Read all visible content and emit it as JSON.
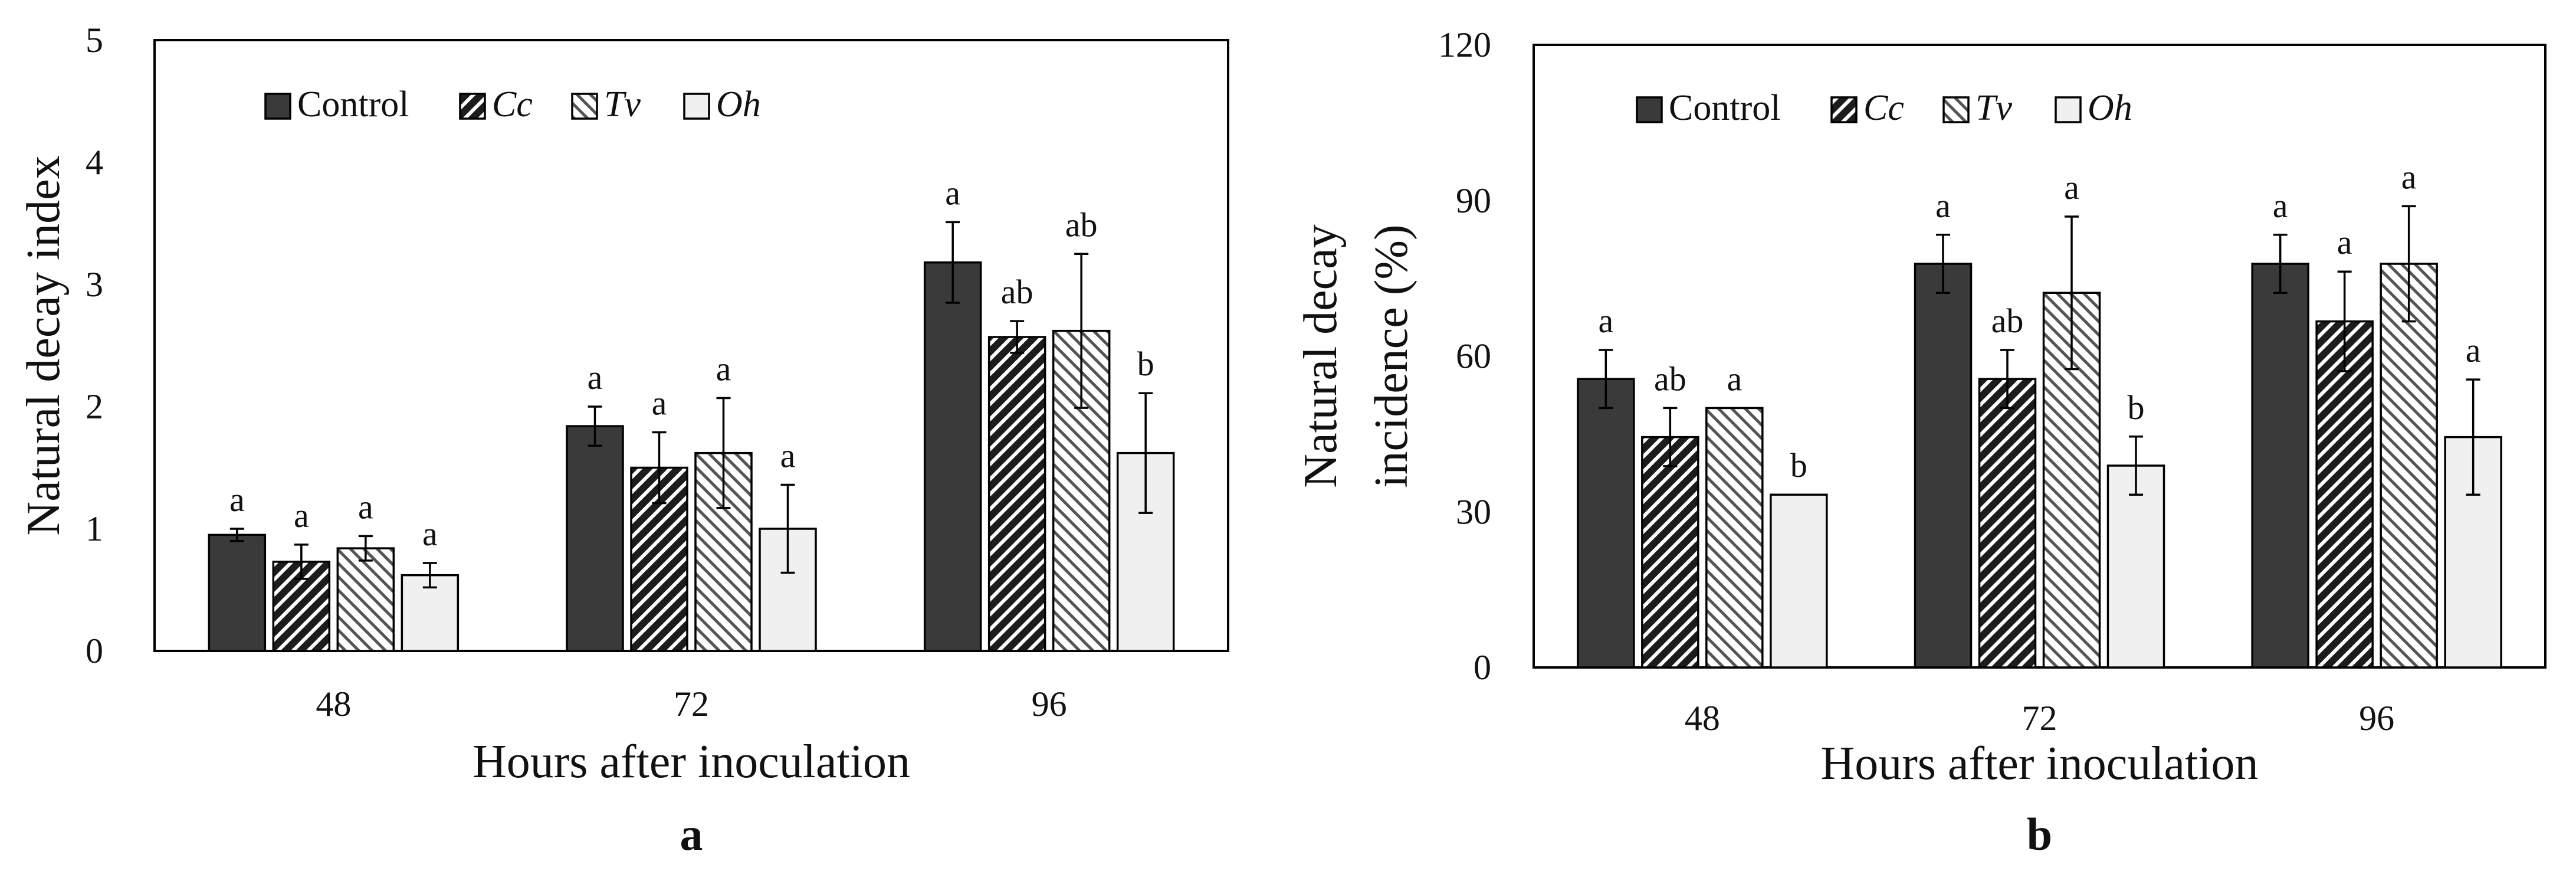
{
  "chart_data": [
    {
      "type": "bar",
      "panel_label": "a",
      "categories": [
        "48",
        "72",
        "96"
      ],
      "xlabel": "Hours after inoculation",
      "ylabel": "Natural decay index",
      "ylim": [
        0,
        5
      ],
      "yticks": [
        0,
        1,
        2,
        3,
        4,
        5
      ],
      "legend_position": "top-left",
      "series": [
        {
          "name": "Control",
          "italic": false,
          "pattern": "solid",
          "values": [
            0.95,
            1.84,
            3.18
          ],
          "errors": [
            0.05,
            0.16,
            0.33
          ],
          "letters": [
            "a",
            "a",
            "a"
          ]
        },
        {
          "name": "Cc",
          "italic": true,
          "pattern": "diag-dark",
          "values": [
            0.73,
            1.5,
            2.57
          ],
          "errors": [
            0.14,
            0.29,
            0.13
          ],
          "letters": [
            "a",
            "a",
            "ab"
          ]
        },
        {
          "name": "Tv",
          "italic": true,
          "pattern": "diag-light",
          "values": [
            0.84,
            1.62,
            2.62
          ],
          "errors": [
            0.1,
            0.45,
            0.63
          ],
          "letters": [
            "a",
            "a",
            "ab"
          ]
        },
        {
          "name": "Oh",
          "italic": true,
          "pattern": "light",
          "values": [
            0.62,
            1.0,
            1.62
          ],
          "errors": [
            0.1,
            0.36,
            0.49
          ],
          "letters": [
            "a",
            "a",
            "b"
          ]
        }
      ]
    },
    {
      "type": "bar",
      "panel_label": "b",
      "categories": [
        "48",
        "72",
        "96"
      ],
      "xlabel": "Hours after inoculation",
      "ylabel": [
        "Natural decay",
        "incidence (%)"
      ],
      "ylim": [
        0,
        120
      ],
      "yticks": [
        0,
        30,
        60,
        90,
        120
      ],
      "legend_position": "top-left",
      "series": [
        {
          "name": "Control",
          "italic": false,
          "pattern": "solid",
          "values": [
            55.6,
            77.8,
            77.8
          ],
          "errors": [
            5.6,
            5.6,
            5.6
          ],
          "letters": [
            "a",
            "a",
            "a"
          ]
        },
        {
          "name": "Cc",
          "italic": true,
          "pattern": "diag-dark",
          "values": [
            44.4,
            55.6,
            66.7
          ],
          "errors": [
            5.6,
            5.6,
            9.6
          ],
          "letters": [
            "ab",
            "ab",
            "a"
          ]
        },
        {
          "name": "Tv",
          "italic": true,
          "pattern": "diag-light",
          "values": [
            50.0,
            72.2,
            77.8
          ],
          "errors": [
            0,
            14.7,
            11.1
          ],
          "letters": [
            "a",
            "a",
            "a"
          ]
        },
        {
          "name": "Oh",
          "italic": true,
          "pattern": "light",
          "values": [
            33.3,
            38.9,
            44.4
          ],
          "errors": [
            0,
            5.6,
            11.1
          ],
          "letters": [
            "b",
            "b",
            "a"
          ]
        }
      ]
    }
  ]
}
